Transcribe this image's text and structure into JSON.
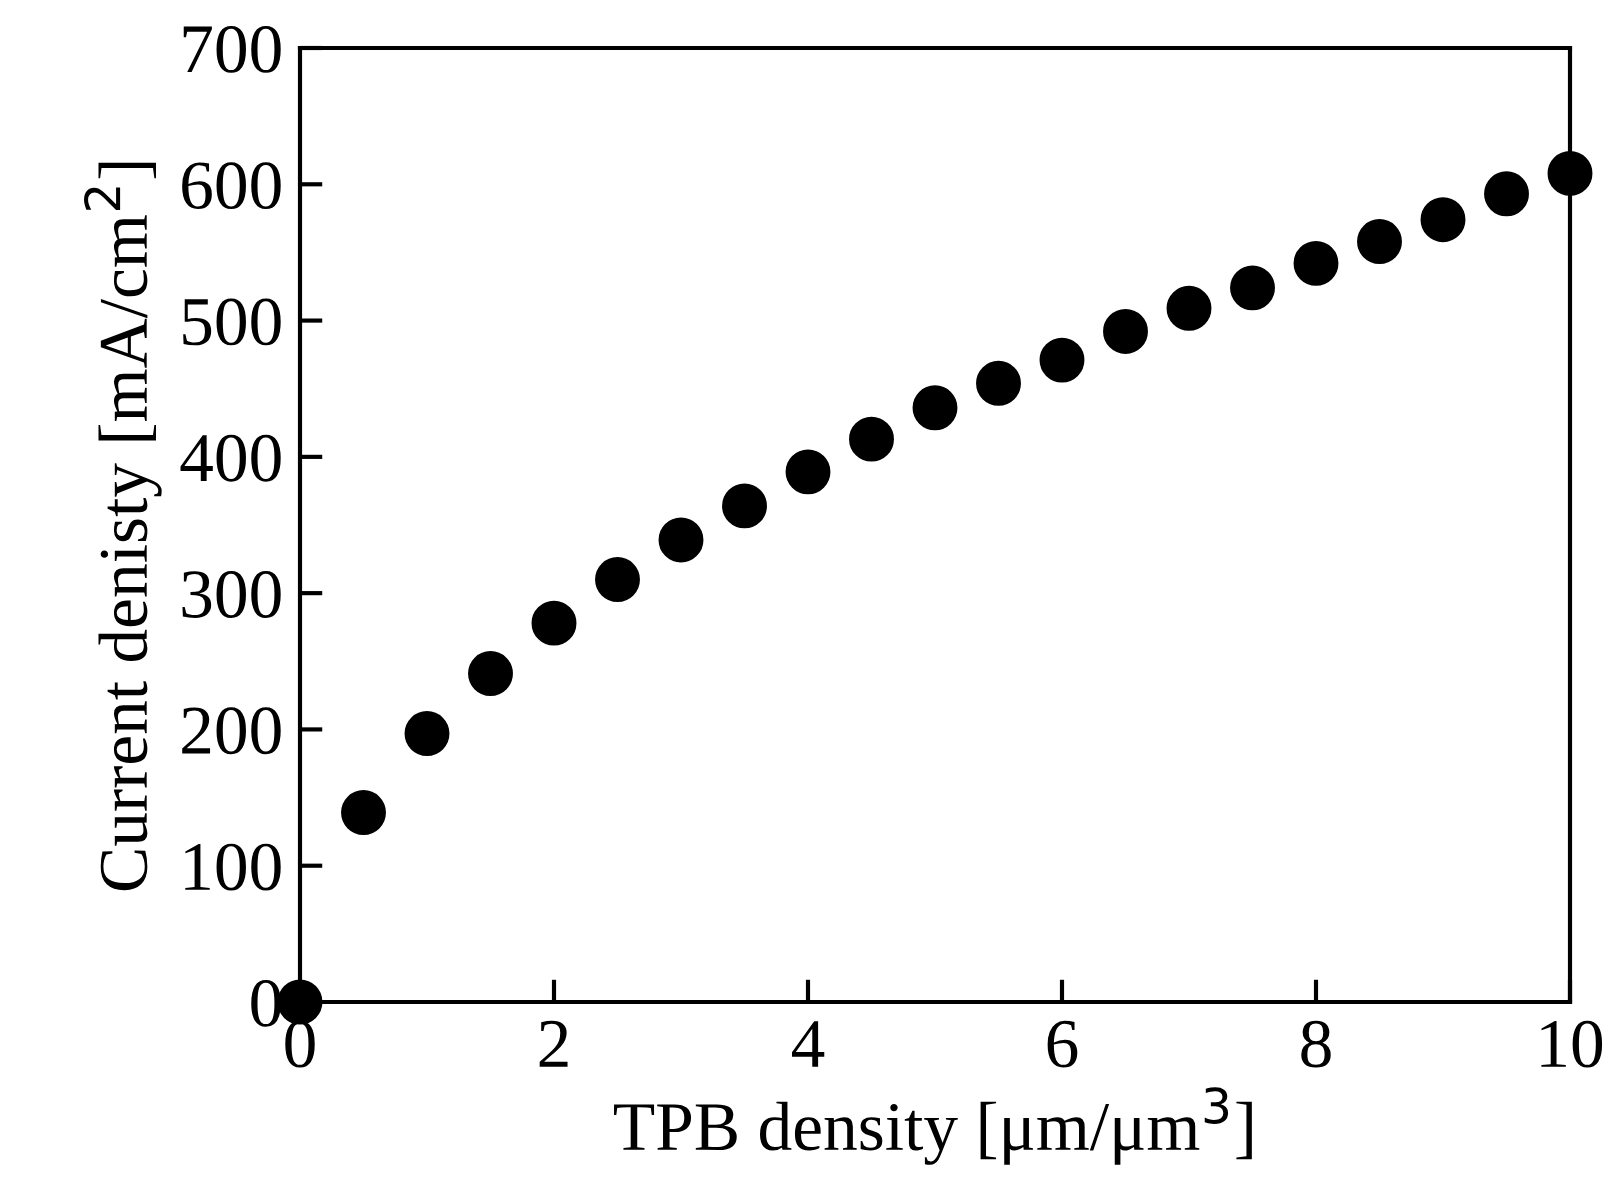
{
  "chart_data": {
    "type": "scatter",
    "xlabel": "TPB density [μm/μm$^{3}$]",
    "ylabel": "Current denisty [mA/cm$^{2}$]",
    "x": [
      0,
      0.5,
      1,
      1.5,
      2,
      2.5,
      3,
      3.5,
      4,
      4.5,
      5,
      5.5,
      6,
      6.5,
      7,
      7.5,
      8,
      8.5,
      9,
      9.5,
      10
    ],
    "series": [
      {
        "color": "#000000",
        "values": [
          0,
          139,
          197,
          241,
          278,
          310,
          339,
          364,
          389,
          413,
          436,
          454,
          471,
          492,
          509,
          524,
          542,
          558,
          574,
          593,
          608
        ]
      }
    ],
    "xlim": [
      0,
      10
    ],
    "xticks": [
      0,
      2,
      4,
      6,
      8,
      10
    ],
    "ylim": [
      0,
      700
    ],
    "yticks": [
      0,
      100,
      200,
      300,
      400,
      500,
      600,
      700
    ],
    "marker": "circle",
    "grid": false,
    "legend": false
  }
}
